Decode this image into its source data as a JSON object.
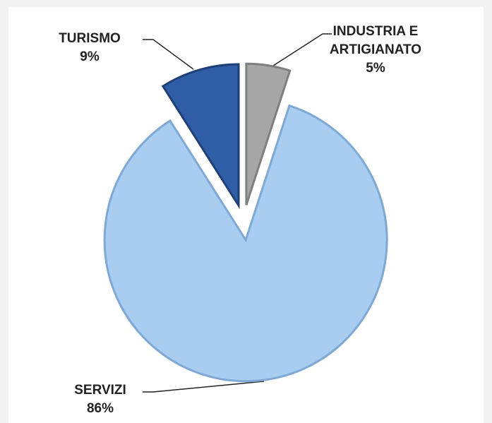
{
  "chart_data": {
    "type": "pie",
    "categories": [
      "INDUSTRIA E ARTIGIANATO",
      "SERVIZI",
      "TURISMO"
    ],
    "values": [
      5,
      86,
      9
    ],
    "value_labels": [
      "5%",
      "86%",
      "9%"
    ],
    "colors": [
      "#a6a6a6",
      "#a9cdf0",
      "#2f5ea6"
    ],
    "exploded": true
  }
}
